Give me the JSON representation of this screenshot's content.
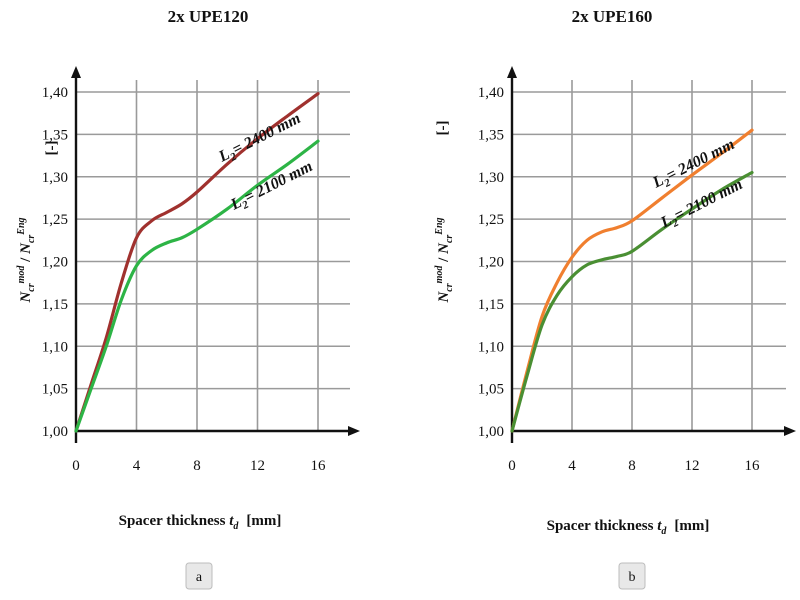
{
  "chart_data": [
    {
      "type": "line",
      "title": "2x UPE120",
      "xlabel_main": "Spacer thickness ",
      "xlabel_sym": "t",
      "xlabel_sub": "d",
      "xlabel_unit": "[mm]",
      "ylabel": "N_cr^mod / N_cr^Eng",
      "yunit": "[-]",
      "xlim": [
        0,
        16
      ],
      "ylim": [
        1.0,
        1.4
      ],
      "xticks": [
        0,
        4,
        8,
        12,
        16
      ],
      "xtick_labels": [
        "0",
        "4",
        "8",
        "12",
        "16"
      ],
      "yticks": [
        1.0,
        1.05,
        1.1,
        1.15,
        1.2,
        1.25,
        1.3,
        1.35,
        1.4
      ],
      "ytick_labels": [
        "1,00",
        "1,05",
        "1,10",
        "1,15",
        "1,20",
        "1,25",
        "1,30",
        "1,35",
        "1,40"
      ],
      "grid": true,
      "panel_label": "a",
      "series": [
        {
          "label_sym": "L",
          "label_sub": "2",
          "label_text": "= 2400 mm",
          "color": "#a0312e",
          "x": [
            0,
            1,
            2,
            3,
            4,
            5,
            6,
            7,
            8,
            10,
            12,
            14,
            16
          ],
          "y": [
            1.0,
            1.055,
            1.11,
            1.175,
            1.228,
            1.248,
            1.258,
            1.268,
            1.282,
            1.315,
            1.345,
            1.372,
            1.398
          ]
        },
        {
          "label_sym": "L",
          "label_sub": "2",
          "label_text": "= 2100 mm",
          "color": "#2db446",
          "x": [
            0,
            1,
            2,
            3,
            4,
            5,
            6,
            7,
            8,
            10,
            12,
            14,
            16
          ],
          "y": [
            1.0,
            1.05,
            1.1,
            1.155,
            1.195,
            1.213,
            1.222,
            1.228,
            1.238,
            1.262,
            1.29,
            1.315,
            1.342
          ]
        }
      ]
    },
    {
      "type": "line",
      "title": "2x UPE160",
      "xlabel_main": "Spacer thickness ",
      "xlabel_sym": "t",
      "xlabel_sub": "d",
      "xlabel_unit": "[mm]",
      "ylabel": "N_cr^mod / N_cr^Eng",
      "yunit": "[-]",
      "xlim": [
        0,
        16
      ],
      "ylim": [
        1.0,
        1.4
      ],
      "xticks": [
        0,
        4,
        8,
        12,
        16
      ],
      "xtick_labels": [
        "0",
        "4",
        "8",
        "12",
        "16"
      ],
      "yticks": [
        1.0,
        1.05,
        1.1,
        1.15,
        1.2,
        1.25,
        1.3,
        1.35,
        1.4
      ],
      "ytick_labels": [
        "1,00",
        "1,05",
        "1,10",
        "1,15",
        "1,20",
        "1,25",
        "1,30",
        "1,35",
        "1,40"
      ],
      "grid": true,
      "panel_label": "b",
      "series": [
        {
          "label_sym": "L",
          "label_sub": "2",
          "label_text": "= 2400 mm",
          "color": "#f07f2f",
          "x": [
            0,
            1,
            2,
            3,
            4,
            5,
            6,
            7,
            8,
            10,
            12,
            14,
            16
          ],
          "y": [
            1.0,
            1.07,
            1.135,
            1.175,
            1.205,
            1.225,
            1.235,
            1.24,
            1.248,
            1.275,
            1.302,
            1.328,
            1.355
          ]
        },
        {
          "label_sym": "L",
          "label_sub": "2",
          "label_text": "= 2100 mm",
          "color": "#4a8f33",
          "x": [
            0,
            1,
            2,
            3,
            4,
            5,
            6,
            7,
            8,
            10,
            12,
            14,
            16
          ],
          "y": [
            1.0,
            1.065,
            1.125,
            1.16,
            1.182,
            1.196,
            1.202,
            1.206,
            1.212,
            1.238,
            1.262,
            1.285,
            1.305
          ]
        }
      ]
    }
  ]
}
